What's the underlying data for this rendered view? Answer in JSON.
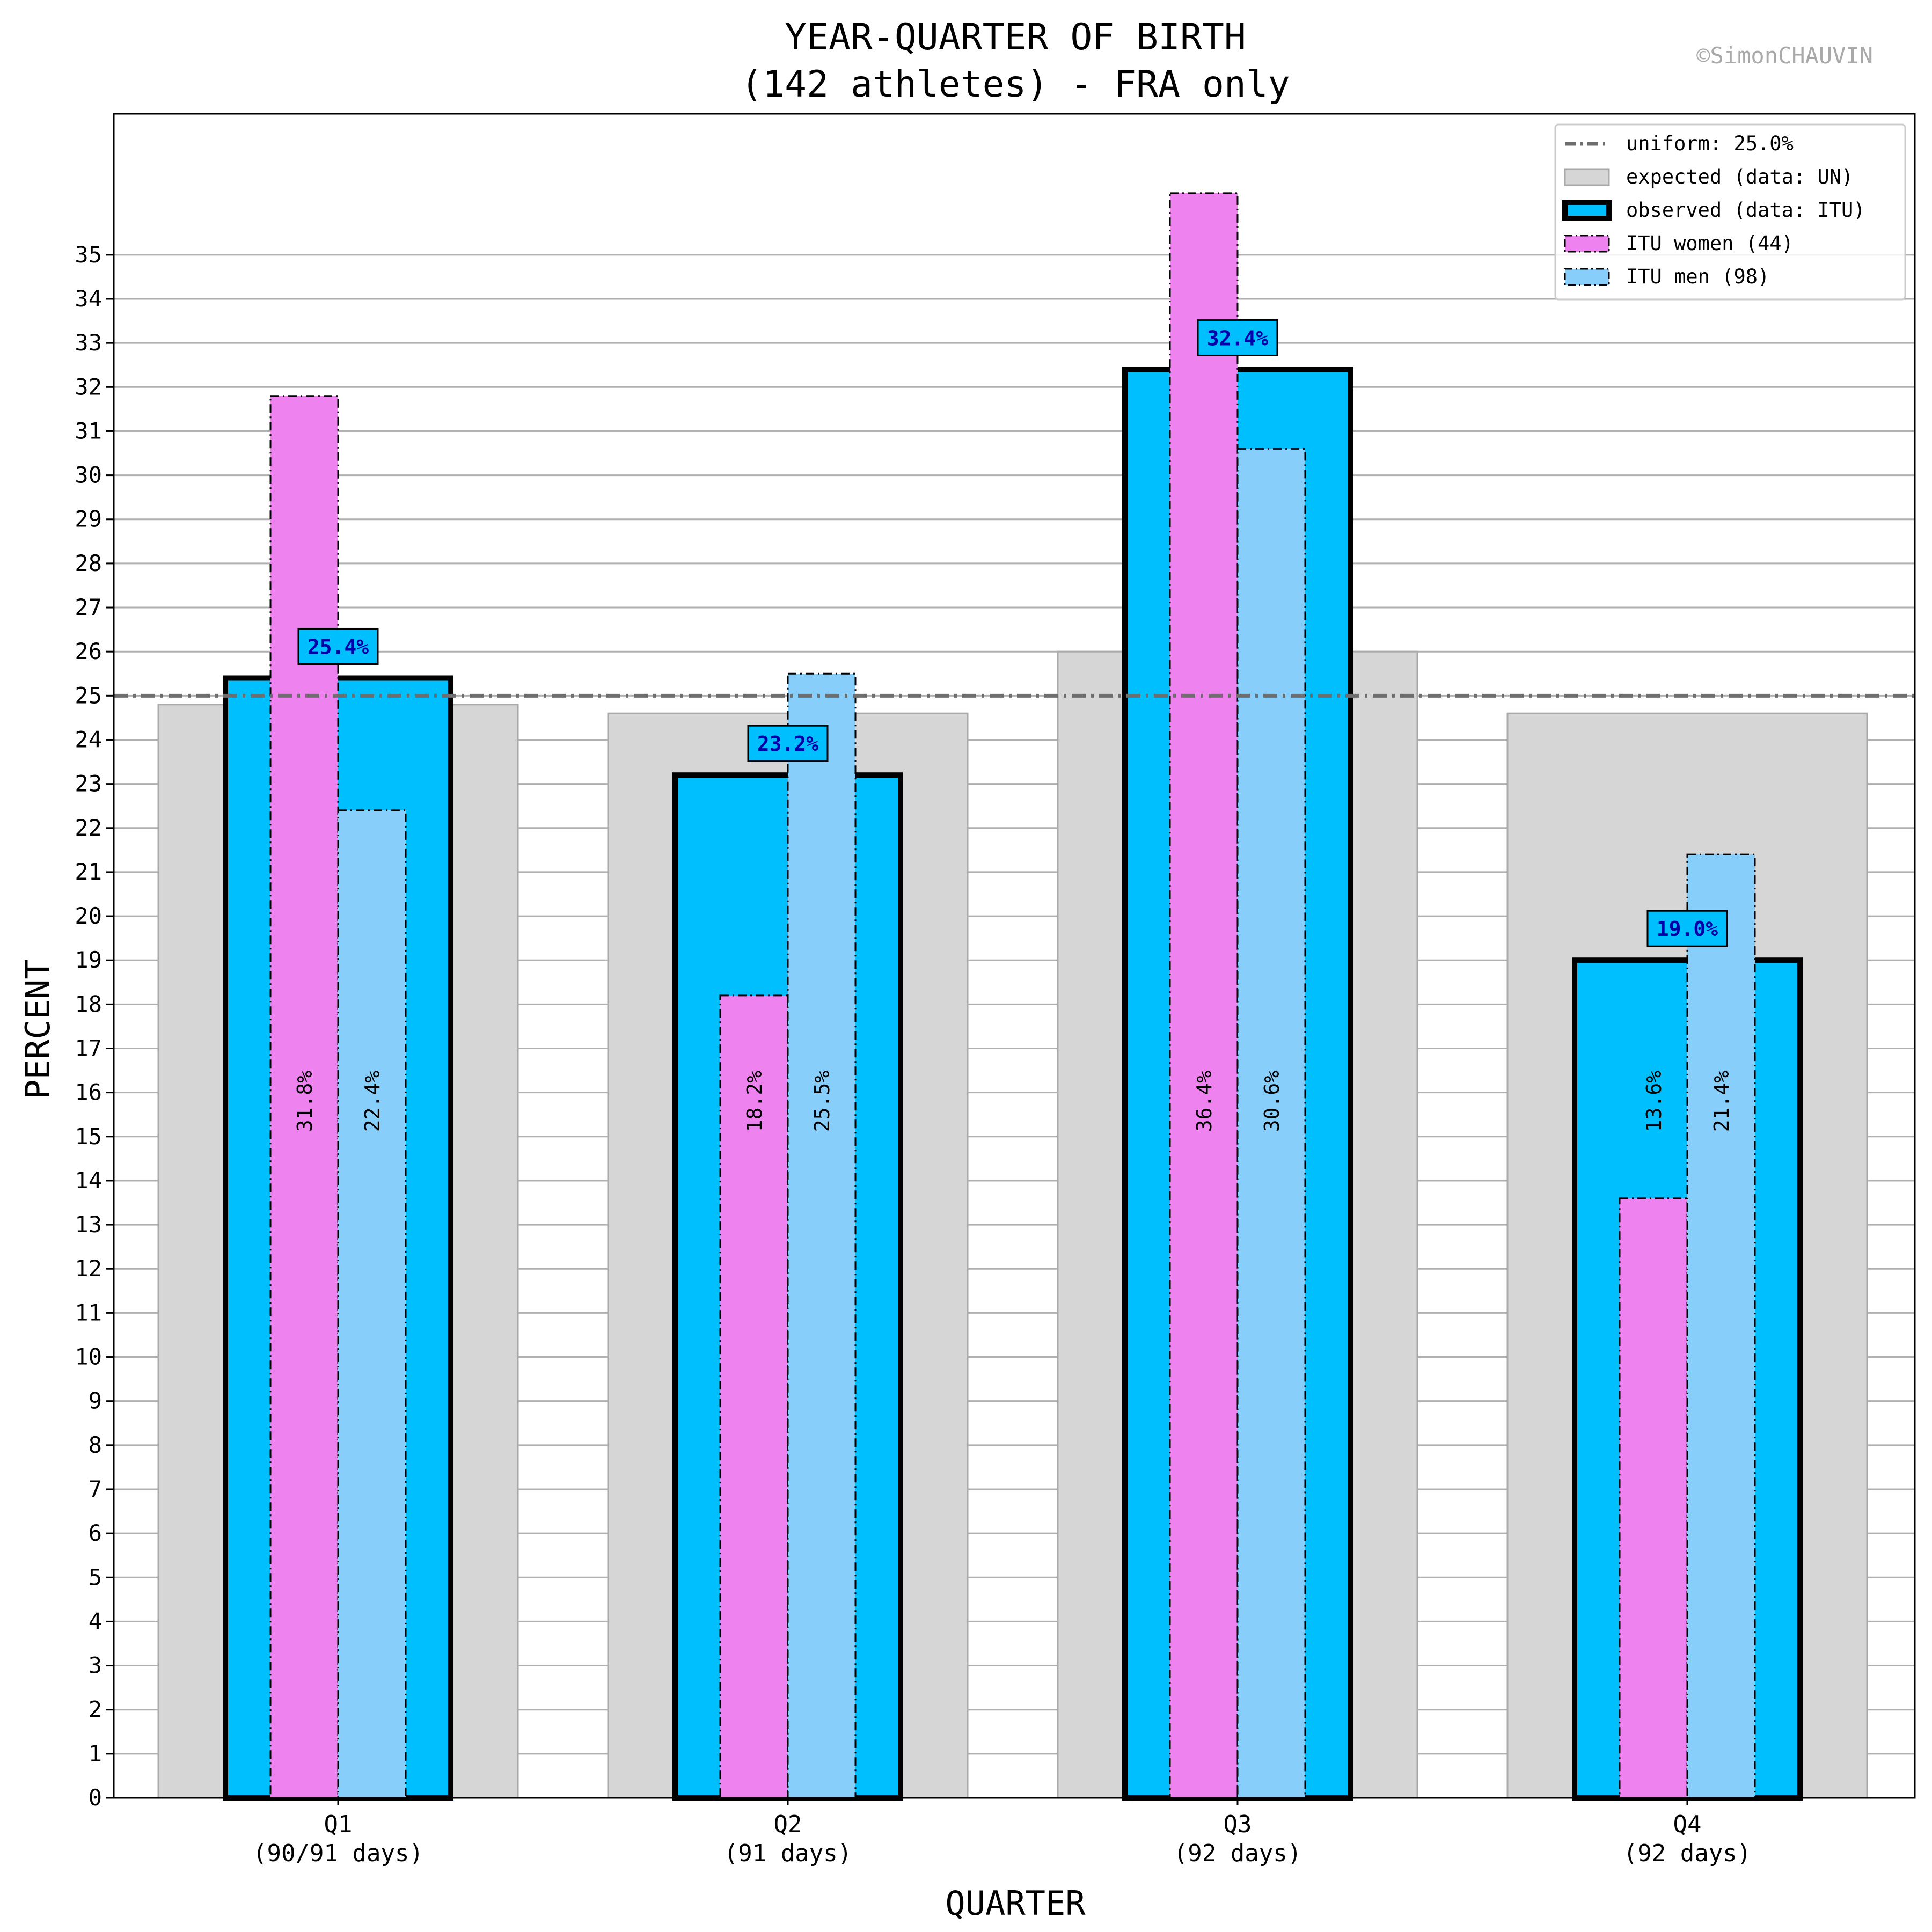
{
  "chart_data": {
    "type": "bar",
    "title": "YEAR-QUARTER OF BIRTH",
    "subtitle": "(142 athletes) - FRA only",
    "watermark": "©SimonCHAUVIN",
    "xlabel": "QUARTER",
    "ylabel": "PERCENT",
    "ylim": [
      0,
      38.2
    ],
    "yticks": [
      0,
      1,
      2,
      3,
      4,
      5,
      6,
      7,
      8,
      9,
      10,
      11,
      12,
      13,
      14,
      15,
      16,
      17,
      18,
      19,
      20,
      21,
      22,
      23,
      24,
      25,
      26,
      27,
      28,
      29,
      30,
      31,
      32,
      33,
      34,
      35
    ],
    "grid": true,
    "legend_position": "top-right",
    "categories": [
      "Q1",
      "Q2",
      "Q3",
      "Q4"
    ],
    "category_sublabels": [
      "(90/91 days)",
      "(91 days)",
      "(92 days)",
      "(92 days)"
    ],
    "uniform": {
      "name": "uniform: 25.0%",
      "value": 25.0,
      "color": "#6e6e6e"
    },
    "series": [
      {
        "key": "expected",
        "name": "expected (data: UN)",
        "values": [
          24.8,
          24.6,
          26.0,
          24.6
        ],
        "color": "#d6d6d6"
      },
      {
        "key": "observed",
        "name": "observed (data: ITU)",
        "values": [
          25.4,
          23.2,
          32.4,
          19.0
        ],
        "color": "#00bfff",
        "labels": [
          "25.4%",
          "23.2%",
          "32.4%",
          "19.0%"
        ]
      },
      {
        "key": "women",
        "name": "ITU women (44)",
        "values": [
          31.8,
          18.2,
          36.4,
          13.6
        ],
        "color": "#ee82ee",
        "labels": [
          "31.8%",
          "18.2%",
          "36.4%",
          "13.6%"
        ]
      },
      {
        "key": "men",
        "name": "ITU men (98)",
        "values": [
          22.4,
          25.5,
          30.6,
          21.4
        ],
        "color": "#87cefa",
        "labels": [
          "22.4%",
          "25.5%",
          "30.6%",
          "21.4%"
        ]
      }
    ]
  }
}
